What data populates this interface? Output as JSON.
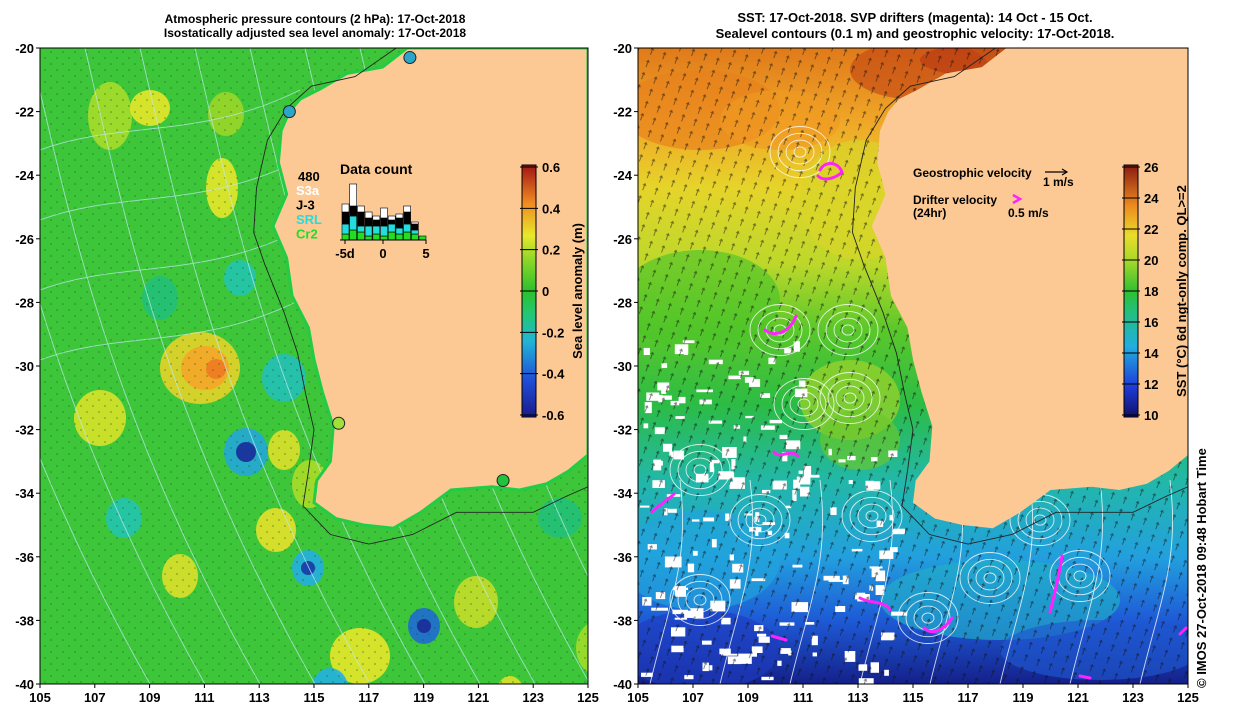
{
  "left_panel": {
    "title_line1": "Atmospheric pressure contours (2 hPa): 17-Oct-2018",
    "title_line2": "Isostatically adjusted sea level anomaly: 17-Oct-2018",
    "x_ticks": [
      "105",
      "107",
      "109",
      "111",
      "113",
      "115",
      "117",
      "119",
      "121",
      "123",
      "125"
    ],
    "y_ticks": [
      "-20",
      "-22",
      "-24",
      "-26",
      "-28",
      "-30",
      "-32",
      "-34",
      "-36",
      "-38",
      "-40"
    ],
    "colorbar": {
      "label": "Sea level anomaly (m)",
      "ticks": [
        "0.6",
        "0.4",
        "0.2",
        "0",
        "-0.2",
        "-0.4",
        "-0.6"
      ],
      "range": [
        -0.6,
        0.6
      ]
    },
    "data_count": {
      "title": "Data count",
      "max_label": "480",
      "legend": [
        {
          "name": "S3a",
          "color": "#ffffff"
        },
        {
          "name": "J-3",
          "color": "#000000"
        },
        {
          "name": "SRL",
          "color": "#22dddd"
        },
        {
          "name": "Cr2",
          "color": "#22dd22"
        }
      ],
      "x_ticks": [
        "-5d",
        "0",
        "5"
      ]
    },
    "tide_gauges": [
      {
        "lon": 118.5,
        "lat": -20.3,
        "color": "#2aa6c8"
      },
      {
        "lon": 114.1,
        "lat": -22.0,
        "color": "#2aa6c8"
      },
      {
        "lon": 115.9,
        "lat": -31.8,
        "color": "#9fe03a"
      },
      {
        "lon": 121.9,
        "lat": -33.6,
        "color": "#22c23a"
      }
    ]
  },
  "right_panel": {
    "title_line1": "SST: 17-Oct-2018. SVP drifters (magenta): 14 Oct - 15 Oct.",
    "title_line2": "Sealevel contours (0.1 m) and geostrophic velocity: 17-Oct-2018.",
    "x_ticks": [
      "105",
      "107",
      "109",
      "111",
      "113",
      "115",
      "117",
      "119",
      "121",
      "123",
      "125"
    ],
    "y_ticks": [
      "-20",
      "-22",
      "-24",
      "-26",
      "-28",
      "-30",
      "-32",
      "-34",
      "-36",
      "-38",
      "-40"
    ],
    "colorbar": {
      "label": "SST (°C) 6d ngt-only comp. QL>=2",
      "ticks": [
        "26",
        "24",
        "22",
        "20",
        "18",
        "16",
        "14",
        "12",
        "10"
      ],
      "range": [
        10,
        27
      ]
    },
    "legend": {
      "geostrophic_label": "Geostrophic velocity",
      "geostrophic_scale": "1 m/s",
      "drifter_label_line1": "Drifter velocity",
      "drifter_label_line2": "(24hr)",
      "drifter_scale": "0.5 m/s"
    }
  },
  "credit": "©  IMOS 27-Oct-2018 09:48 Hobart Time",
  "colors": {
    "land": "#fcc994",
    "coast": "#22cc44",
    "drifter": "#ff22ff"
  }
}
